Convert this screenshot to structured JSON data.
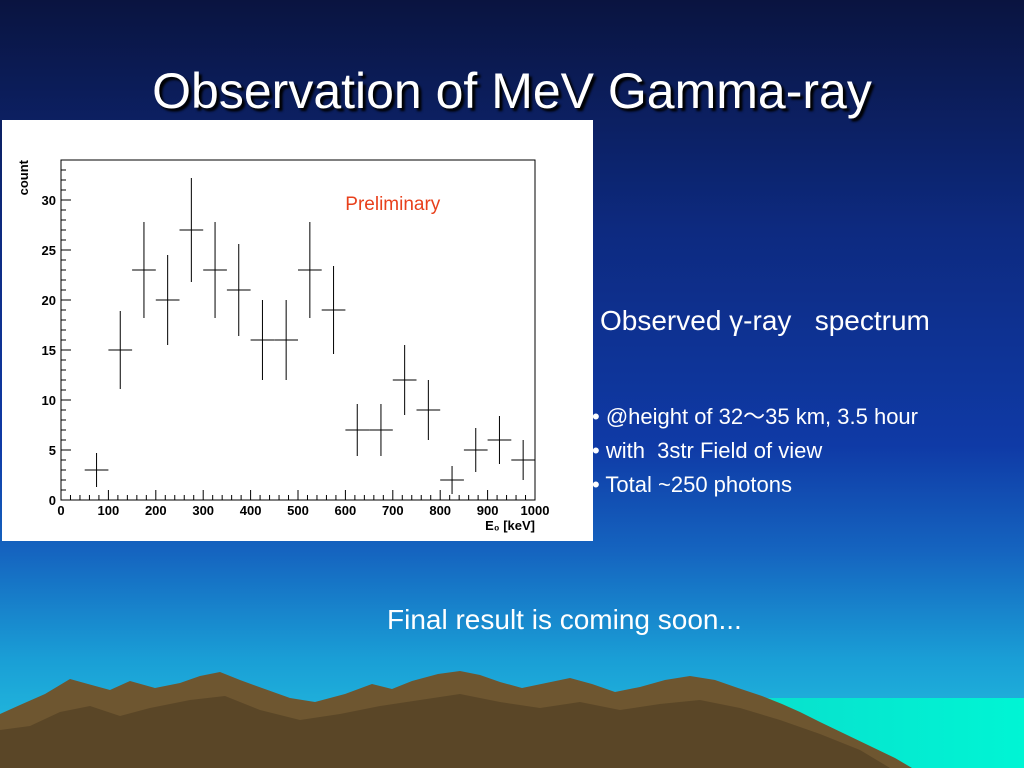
{
  "slide": {
    "title": "Observation of MeV Gamma-ray",
    "caption": "Observed γ-ray   spectrum",
    "bullets": [
      "• @height of 32～35 km, 3.5 hour",
      "• with  3str Field of view",
      "• Total ~250 photons"
    ],
    "final_note": "Final result is coming soon..."
  },
  "chart_data": {
    "type": "scatter",
    "annotation": "Preliminary",
    "xlabel": "E₀ [keV]",
    "ylabel": "count",
    "xlim": [
      0,
      1000
    ],
    "ylim": [
      0,
      34
    ],
    "xticks": [
      0,
      100,
      200,
      300,
      400,
      500,
      600,
      700,
      800,
      900,
      1000
    ],
    "yticks": [
      0,
      5,
      10,
      15,
      20,
      25,
      30
    ],
    "bin_halfwidth": 25,
    "points": [
      {
        "x": 75,
        "y": 3,
        "err": 1.7
      },
      {
        "x": 125,
        "y": 15,
        "err": 3.9
      },
      {
        "x": 175,
        "y": 23,
        "err": 4.8
      },
      {
        "x": 225,
        "y": 20,
        "err": 4.5
      },
      {
        "x": 275,
        "y": 27,
        "err": 5.2
      },
      {
        "x": 325,
        "y": 23,
        "err": 4.8
      },
      {
        "x": 375,
        "y": 21,
        "err": 4.6
      },
      {
        "x": 425,
        "y": 16,
        "err": 4
      },
      {
        "x": 475,
        "y": 16,
        "err": 4
      },
      {
        "x": 525,
        "y": 23,
        "err": 4.8
      },
      {
        "x": 575,
        "y": 19,
        "err": 4.4
      },
      {
        "x": 625,
        "y": 7,
        "err": 2.6
      },
      {
        "x": 675,
        "y": 7,
        "err": 2.6
      },
      {
        "x": 725,
        "y": 12,
        "err": 3.5
      },
      {
        "x": 775,
        "y": 9,
        "err": 3
      },
      {
        "x": 825,
        "y": 2,
        "err": 1.4
      },
      {
        "x": 875,
        "y": 5,
        "err": 2.2
      },
      {
        "x": 925,
        "y": 6,
        "err": 2.4
      },
      {
        "x": 975,
        "y": 4,
        "err": 2
      }
    ],
    "colors": {
      "annotation": "#e8401c",
      "frame": "#000000"
    }
  }
}
